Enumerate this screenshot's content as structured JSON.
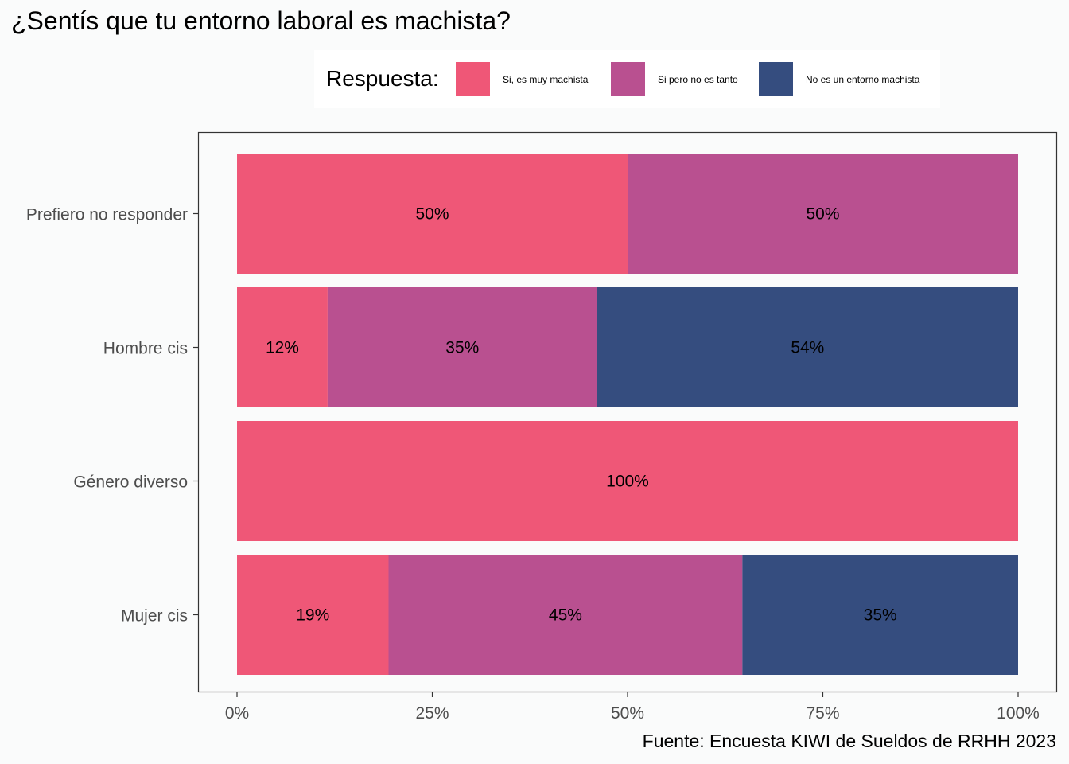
{
  "chart_data": {
    "type": "bar",
    "orientation": "horizontal",
    "stacked": true,
    "title": "¿Sentís que tu entorno laboral es machista?",
    "legend": {
      "title": "Respuesta:",
      "placement": "top",
      "entries": [
        "Si, es muy machista",
        "Si pero no es tanto",
        "No es un entorno machista"
      ]
    },
    "categories": [
      "Prefiero no responder",
      "Hombre cis",
      "Género diverso",
      "Mujer cis"
    ],
    "series": [
      {
        "name": "Si, es muy machista",
        "color": "#ef5777",
        "values": [
          0.5,
          0.116,
          1.0,
          0.194
        ],
        "labels": [
          "50%",
          "12%",
          "100%",
          "19%"
        ]
      },
      {
        "name": "Si pero no es tanto",
        "color": "#b95090",
        "values": [
          0.5,
          0.345,
          0,
          0.453
        ],
        "labels": [
          "50%",
          "35%",
          "",
          "45%"
        ]
      },
      {
        "name": "No es un entorno machista",
        "color": "#354d7f",
        "values": [
          0,
          0.539,
          0,
          0.353
        ],
        "labels": [
          "",
          "54%",
          "",
          "35%"
        ]
      }
    ],
    "xlim": [
      0,
      1
    ],
    "xticks": [
      0,
      0.25,
      0.5,
      0.75,
      1
    ],
    "xtick_labels": [
      "0%",
      "25%",
      "50%",
      "75%",
      "100%"
    ],
    "xlabel": "",
    "ylabel": "",
    "grid": false,
    "caption": "Fuente: Encuesta KIWI de Sueldos de RRHH 2023"
  }
}
